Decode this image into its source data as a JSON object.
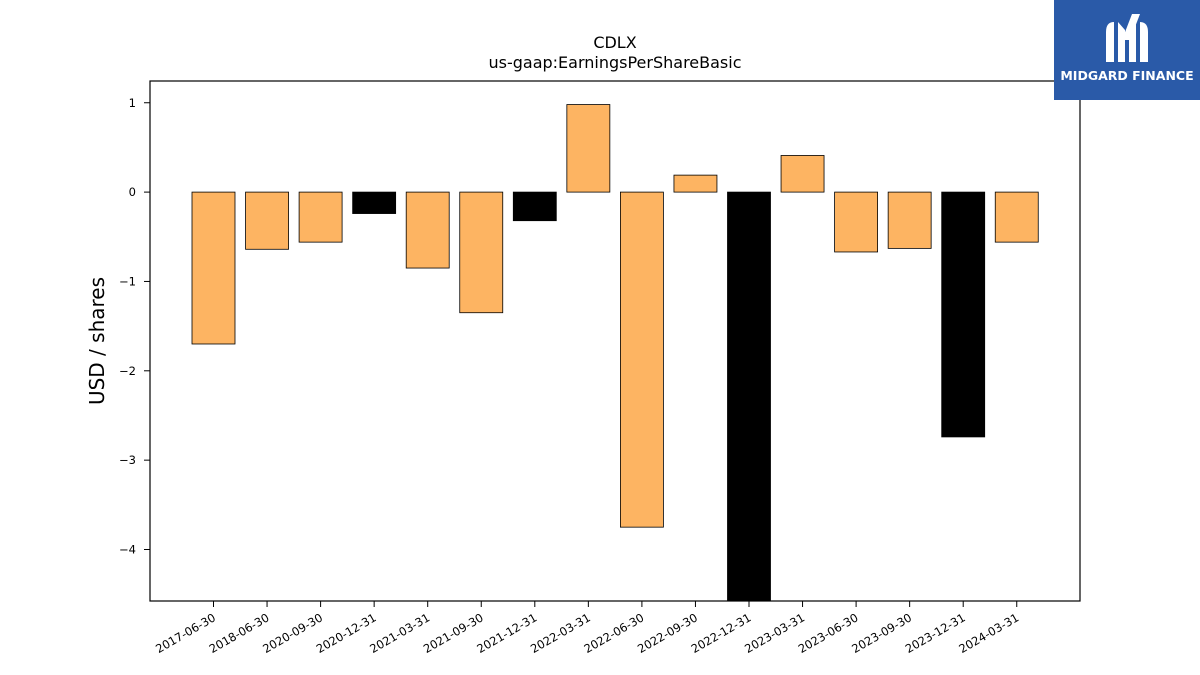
{
  "colors": {
    "positive_fill": "#fdb462",
    "highlight_fill": "#000000",
    "logo_bg": "#2a5aa8"
  },
  "logo": {
    "text": "MIDGARD FINANCE",
    "icon": "mf-logo-icon"
  },
  "chart_data": {
    "type": "bar",
    "title": "CDLX",
    "subtitle": "us-gaap:EarningsPerShareBasic",
    "xlabel": "",
    "ylabel": "USD / shares",
    "ylim": [
      -4.57,
      1.25
    ],
    "yticks": [
      1,
      0,
      -1,
      -2,
      -3,
      -4
    ],
    "ytick_labels": [
      "1",
      "0",
      "−1",
      "−2",
      "−3",
      "−4"
    ],
    "grid": false,
    "categories": [
      "2017-06-30",
      "2018-06-30",
      "2020-09-30",
      "2020-12-31",
      "2021-03-31",
      "2021-09-30",
      "2021-12-31",
      "2022-03-31",
      "2022-06-30",
      "2022-09-30",
      "2022-12-31",
      "2023-03-31",
      "2023-06-30",
      "2023-09-30",
      "2023-12-31",
      "2024-03-31"
    ],
    "values": [
      -1.7,
      -0.64,
      -0.56,
      -0.24,
      -0.85,
      -1.35,
      -0.32,
      0.98,
      -3.75,
      0.19,
      -4.57,
      0.41,
      -0.67,
      -0.63,
      -2.74,
      -0.56
    ],
    "bar_colors": [
      "orange",
      "orange",
      "orange",
      "black",
      "orange",
      "orange",
      "black",
      "orange",
      "orange",
      "orange",
      "black",
      "orange",
      "orange",
      "orange",
      "black",
      "orange"
    ]
  }
}
